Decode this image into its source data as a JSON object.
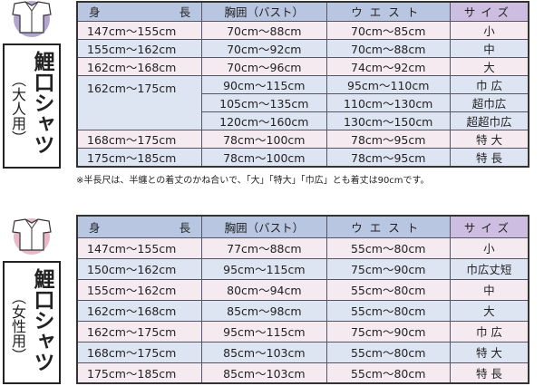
{
  "adult": {
    "title": "鯉口シャツ",
    "subtitle": "（大人用）",
    "icon_color": "#b3a4d0",
    "headers": [
      "身",
      "長",
      "胸囲（バスト）",
      "ウエスト",
      "サイズ"
    ],
    "rows": [
      {
        "height": "147cm〜155cm",
        "bust": "70cm〜88cm",
        "waist": "70cm〜85cm",
        "size": "小"
      },
      {
        "height": "155cm〜162cm",
        "bust": "70cm〜92cm",
        "waist": "70cm〜88cm",
        "size": "中"
      },
      {
        "height": "162cm〜168cm",
        "bust": "70cm〜96cm",
        "waist": "74cm〜92cm",
        "size": "大"
      },
      {
        "height": "162cm〜175cm",
        "bust": "90cm〜115cm",
        "waist": "95cm〜110cm",
        "size": "巾 広"
      },
      {
        "height": "",
        "bust": "105cm〜135cm",
        "waist": "110cm〜130cm",
        "size": "超巾広"
      },
      {
        "height": "",
        "bust": "120cm〜160cm",
        "waist": "130cm〜150cm",
        "size": "超超巾広"
      },
      {
        "height": "168cm〜175cm",
        "bust": "78cm〜100cm",
        "waist": "78cm〜95cm",
        "size": "特 大"
      },
      {
        "height": "175cm〜185cm",
        "bust": "78cm〜100cm",
        "waist": "78cm〜95cm",
        "size": "特 長"
      }
    ],
    "note": "※半長尺は、半纏との着丈のかね合いで、「大」「特大」「巾広」とも着丈は90cmです。"
  },
  "women": {
    "title": "鯉口シャツ",
    "subtitle": "（女性用）",
    "icon_color": "#eab7c8",
    "headers": [
      "身",
      "長",
      "胸囲（バスト）",
      "ウエスト",
      "サイズ"
    ],
    "rows": [
      {
        "height": "147cm〜155cm",
        "bust": "77cm〜88cm",
        "waist": "55cm〜80cm",
        "size": "小"
      },
      {
        "height": "150cm〜162cm",
        "bust": "95cm〜115cm",
        "waist": "75cm〜90cm",
        "size": "巾広丈短"
      },
      {
        "height": "155cm〜162cm",
        "bust": "80cm〜94cm",
        "waist": "55cm〜80cm",
        "size": "中"
      },
      {
        "height": "162cm〜168cm",
        "bust": "85cm〜98cm",
        "waist": "55cm〜80cm",
        "size": "大"
      },
      {
        "height": "162cm〜175cm",
        "bust": "95cm〜115cm",
        "waist": "75cm〜90cm",
        "size": "巾 広"
      },
      {
        "height": "168cm〜175cm",
        "bust": "85cm〜103cm",
        "waist": "55cm〜80cm",
        "size": "特 大"
      },
      {
        "height": "175cm〜185cm",
        "bust": "85cm〜103cm",
        "waist": "55cm〜80cm",
        "size": "特 長"
      }
    ]
  }
}
